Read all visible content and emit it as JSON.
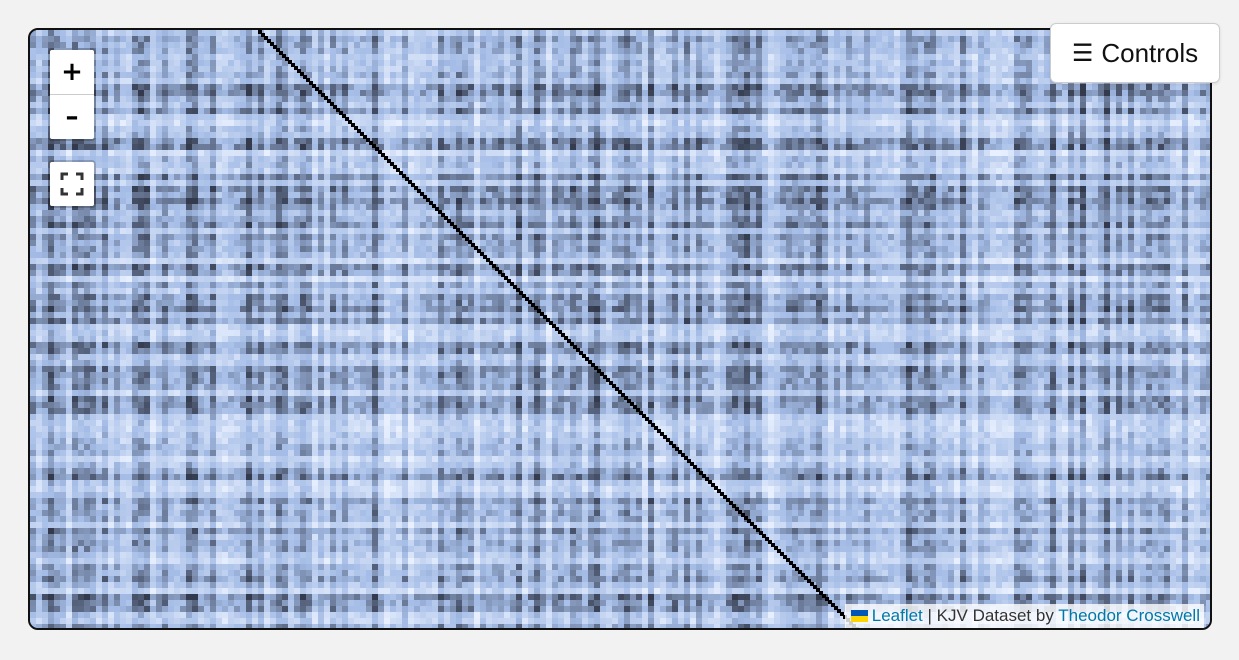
{
  "map": {
    "accent_colors": {
      "heat_low": "#e8f0ff",
      "heat_mid": "#a4bce6",
      "heat_high": "#000000",
      "link": "#0078a8"
    }
  },
  "zoom": {
    "in_label": "+",
    "out_label": "–"
  },
  "fullscreen": {
    "icon": "fullscreen-icon"
  },
  "controls": {
    "icon": "☰",
    "label": "Controls"
  },
  "attribution": {
    "leaflet_link": "Leaflet",
    "separator": "|",
    "dataset_text": "KJV Dataset by",
    "author_link": "Theodor Crosswell"
  }
}
